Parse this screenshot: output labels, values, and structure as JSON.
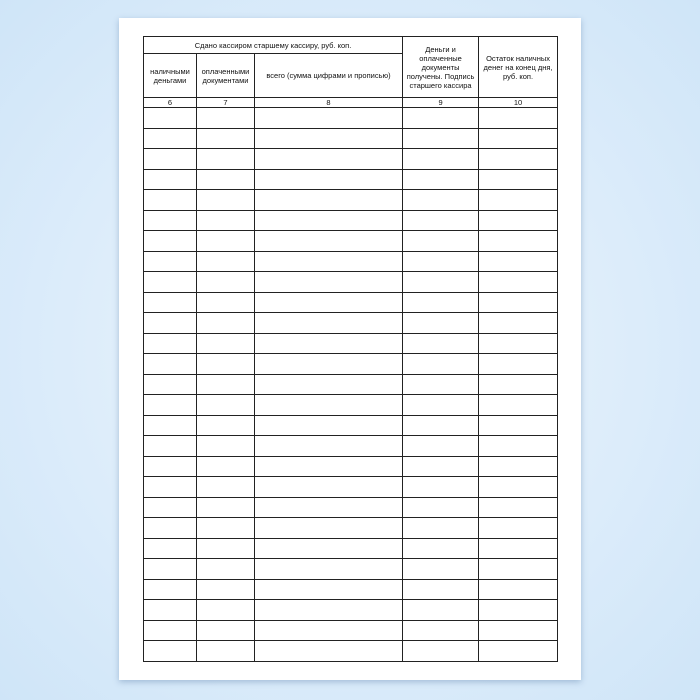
{
  "table": {
    "group_header": "Сдано кассиром старшему кассиру, руб. коп.",
    "col_money": "Деньги и оплаченные документы получены. Подпись старшего кассира",
    "col_balance": "Остаток наличных денег на конец дня, руб. коп.",
    "sub_cash": "наличными деньгами",
    "sub_docs": "оплаченными документами",
    "sub_total": "всего (сумма цифрами и прописью)",
    "col_numbers": [
      "6",
      "7",
      "8",
      "9",
      "10"
    ],
    "empty_rows": 27
  }
}
